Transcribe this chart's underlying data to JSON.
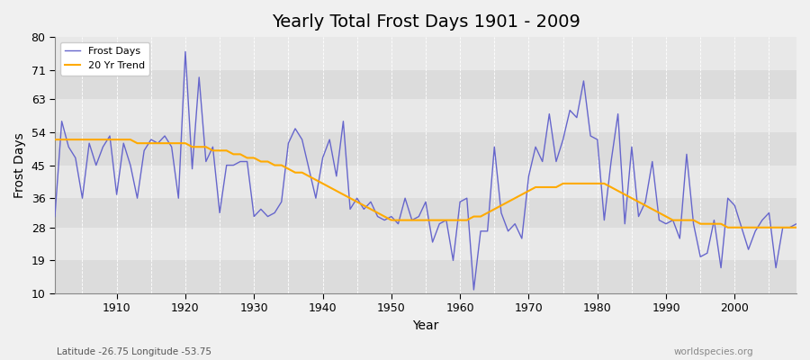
{
  "title": "Yearly Total Frost Days 1901 - 2009",
  "xlabel": "Year",
  "ylabel": "Frost Days",
  "lat_lon_label": "Latitude -26.75 Longitude -53.75",
  "source_label": "worldspecies.org",
  "years": [
    1901,
    1902,
    1903,
    1904,
    1905,
    1906,
    1907,
    1908,
    1909,
    1910,
    1911,
    1912,
    1913,
    1914,
    1915,
    1916,
    1917,
    1918,
    1919,
    1920,
    1921,
    1922,
    1923,
    1924,
    1925,
    1926,
    1927,
    1928,
    1929,
    1930,
    1931,
    1932,
    1933,
    1934,
    1935,
    1936,
    1937,
    1938,
    1939,
    1940,
    1941,
    1942,
    1943,
    1944,
    1945,
    1946,
    1947,
    1948,
    1949,
    1950,
    1951,
    1952,
    1953,
    1954,
    1955,
    1956,
    1957,
    1958,
    1959,
    1960,
    1961,
    1962,
    1963,
    1964,
    1965,
    1966,
    1967,
    1968,
    1969,
    1970,
    1971,
    1972,
    1973,
    1974,
    1975,
    1976,
    1977,
    1978,
    1979,
    1980,
    1981,
    1982,
    1983,
    1984,
    1985,
    1986,
    1987,
    1988,
    1989,
    1990,
    1991,
    1992,
    1993,
    1994,
    1995,
    1996,
    1997,
    1998,
    1999,
    2000,
    2001,
    2002,
    2003,
    2004,
    2005,
    2006,
    2007,
    2008,
    2009
  ],
  "frost_days": [
    31,
    57,
    50,
    47,
    36,
    51,
    45,
    50,
    53,
    37,
    51,
    45,
    36,
    49,
    52,
    51,
    53,
    50,
    36,
    76,
    44,
    69,
    46,
    50,
    32,
    45,
    45,
    46,
    46,
    31,
    33,
    31,
    32,
    35,
    51,
    55,
    52,
    44,
    36,
    47,
    52,
    42,
    57,
    33,
    36,
    33,
    35,
    31,
    30,
    31,
    29,
    36,
    30,
    31,
    35,
    24,
    29,
    30,
    19,
    35,
    36,
    11,
    27,
    27,
    50,
    32,
    27,
    29,
    25,
    42,
    50,
    46,
    59,
    46,
    52,
    60,
    58,
    68,
    53,
    52,
    30,
    46,
    59,
    29,
    50,
    31,
    35,
    46,
    30,
    29,
    30,
    25,
    48,
    29,
    20,
    21,
    30,
    17,
    36,
    34,
    28,
    22,
    27,
    30,
    32,
    17,
    28,
    28,
    29
  ],
  "trend_values": [
    52,
    52,
    52,
    52,
    52,
    52,
    52,
    52,
    52,
    52,
    52,
    52,
    51,
    51,
    51,
    51,
    51,
    51,
    51,
    51,
    50,
    50,
    50,
    49,
    49,
    49,
    48,
    48,
    47,
    47,
    46,
    46,
    45,
    45,
    44,
    43,
    43,
    42,
    41,
    40,
    39,
    38,
    37,
    36,
    35,
    34,
    33,
    32,
    31,
    30,
    30,
    30,
    30,
    30,
    30,
    30,
    30,
    30,
    30,
    30,
    30,
    31,
    31,
    32,
    33,
    34,
    35,
    36,
    37,
    38,
    39,
    39,
    39,
    39,
    40,
    40,
    40,
    40,
    40,
    40,
    40,
    39,
    38,
    37,
    36,
    35,
    34,
    33,
    32,
    31,
    30,
    30,
    30,
    30,
    29,
    29,
    29,
    29,
    28,
    28,
    28,
    28,
    28,
    28,
    28,
    28,
    28,
    28,
    28
  ],
  "line_color": "#6666cc",
  "trend_color": "#ffaa00",
  "bg_color": "#f0f0f0",
  "plot_bg_color": "#e8e8e8",
  "alt_row_color": "#dcdcdc",
  "ylim": [
    10,
    80
  ],
  "yticks": [
    10,
    19,
    28,
    36,
    45,
    54,
    63,
    71,
    80
  ],
  "xlim": [
    1901,
    2009
  ],
  "xticks": [
    1910,
    1920,
    1930,
    1940,
    1950,
    1960,
    1970,
    1980,
    1990,
    2000
  ],
  "title_fontsize": 14,
  "legend_fontsize": 8,
  "axis_fontsize": 10,
  "tick_fontsize": 9
}
